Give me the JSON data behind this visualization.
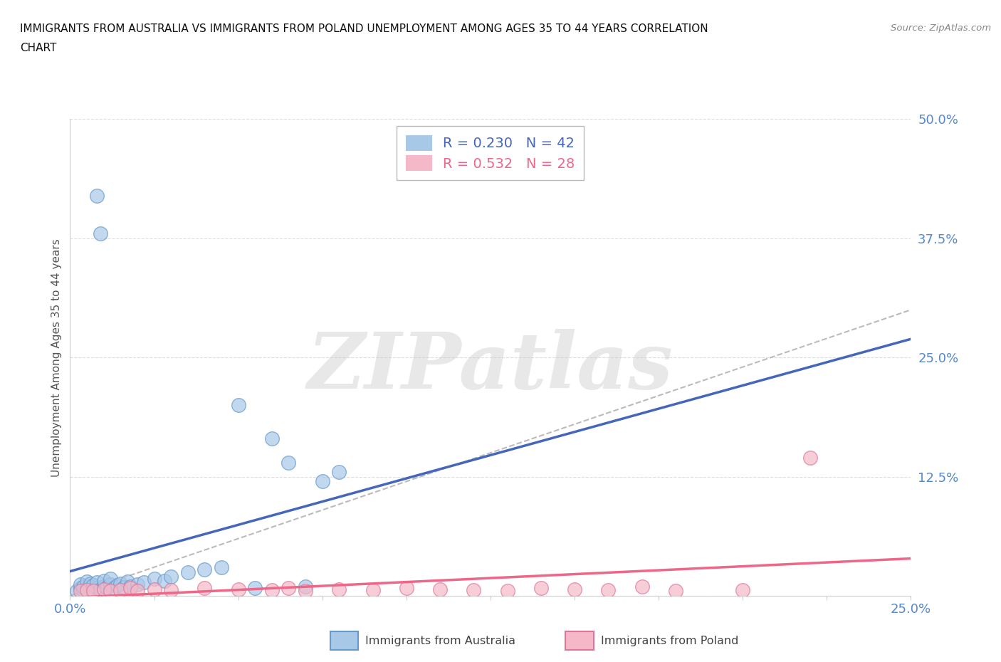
{
  "title_line1": "IMMIGRANTS FROM AUSTRALIA VS IMMIGRANTS FROM POLAND UNEMPLOYMENT AMONG AGES 35 TO 44 YEARS CORRELATION",
  "title_line2": "CHART",
  "source_text": "Source: ZipAtlas.com",
  "ylabel_label": "Unemployment Among Ages 35 to 44 years",
  "legend_australia": "Immigrants from Australia",
  "legend_poland": "Immigrants from Poland",
  "r_australia": "R = 0.230",
  "n_australia": "N = 42",
  "r_poland": "R = 0.532",
  "n_poland": "N = 28",
  "color_australia_fill": "#A8C8E8",
  "color_australia_edge": "#6699CC",
  "color_poland_fill": "#F5B8C8",
  "color_poland_edge": "#DD7799",
  "color_australia_line": "#4466BB",
  "color_poland_line": "#EE6688",
  "color_dashed": "#BBBBBB",
  "color_tick": "#5588CC",
  "xlim": [
    0.0,
    0.25
  ],
  "ylim": [
    0.0,
    0.5
  ],
  "x_ticks": [
    0.0,
    0.025,
    0.05,
    0.075,
    0.1,
    0.125,
    0.15,
    0.175,
    0.2,
    0.225,
    0.25
  ],
  "y_ticks": [
    0.0,
    0.125,
    0.25,
    0.375,
    0.5
  ],
  "australia_x": [
    0.002,
    0.003,
    0.003,
    0.004,
    0.004,
    0.005,
    0.005,
    0.006,
    0.006,
    0.007,
    0.007,
    0.008,
    0.008,
    0.009,
    0.01,
    0.01,
    0.011,
    0.012,
    0.012,
    0.013,
    0.014,
    0.015,
    0.016,
    0.017,
    0.018,
    0.02,
    0.022,
    0.025,
    0.028,
    0.03,
    0.035,
    0.04,
    0.045,
    0.05,
    0.06,
    0.065,
    0.075,
    0.08,
    0.008,
    0.009,
    0.055,
    0.07
  ],
  "australia_y": [
    0.005,
    0.008,
    0.012,
    0.006,
    0.01,
    0.007,
    0.015,
    0.009,
    0.013,
    0.006,
    0.011,
    0.008,
    0.014,
    0.007,
    0.01,
    0.016,
    0.009,
    0.012,
    0.018,
    0.008,
    0.011,
    0.013,
    0.009,
    0.015,
    0.01,
    0.012,
    0.014,
    0.018,
    0.016,
    0.02,
    0.025,
    0.028,
    0.03,
    0.2,
    0.165,
    0.14,
    0.12,
    0.13,
    0.42,
    0.38,
    0.008,
    0.01
  ],
  "poland_x": [
    0.003,
    0.005,
    0.007,
    0.01,
    0.012,
    0.015,
    0.018,
    0.02,
    0.025,
    0.03,
    0.04,
    0.05,
    0.06,
    0.065,
    0.07,
    0.08,
    0.09,
    0.1,
    0.11,
    0.12,
    0.13,
    0.14,
    0.15,
    0.16,
    0.17,
    0.18,
    0.2,
    0.22
  ],
  "poland_y": [
    0.005,
    0.006,
    0.005,
    0.007,
    0.005,
    0.006,
    0.008,
    0.005,
    0.007,
    0.006,
    0.008,
    0.007,
    0.006,
    0.008,
    0.005,
    0.007,
    0.006,
    0.008,
    0.007,
    0.006,
    0.005,
    0.008,
    0.007,
    0.006,
    0.01,
    0.005,
    0.006,
    0.145
  ],
  "watermark": "ZIPatlas",
  "bg_color": "#FFFFFF",
  "grid_color": "#DDDDDD",
  "spine_color": "#CCCCCC"
}
